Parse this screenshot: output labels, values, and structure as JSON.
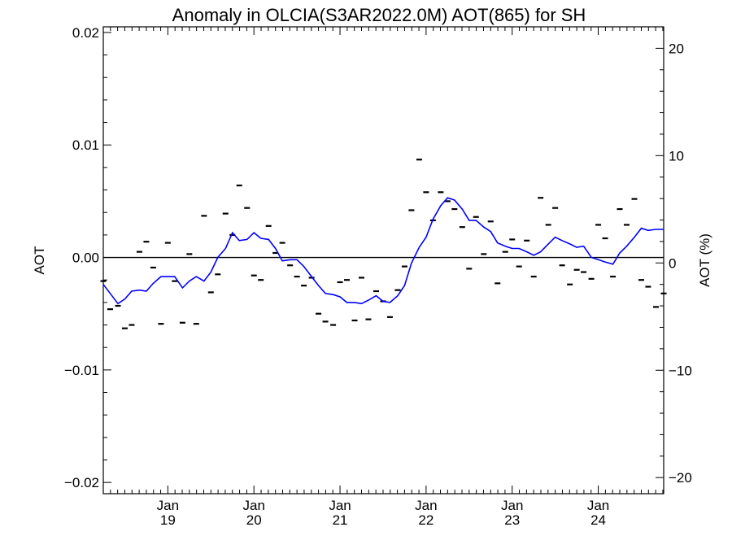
{
  "chart_data": {
    "type": "line",
    "title": "Anomaly in OLCIA(S3AR2022.0M) AOT(865) for SH",
    "ylabel": "AOT",
    "ylabel_right": "AOT (%)",
    "xlabel": "",
    "x_range": [
      2018.25,
      2024.76
    ],
    "ylim": [
      -0.021,
      0.0205
    ],
    "ylim_right": [
      -21.5,
      22.0
    ],
    "y_ticks": [
      -0.02,
      -0.01,
      0.0,
      0.01,
      0.02
    ],
    "y_tick_labels": [
      "−0.02",
      "−0.01",
      "0.00",
      "0.01",
      "0.02"
    ],
    "y_right_ticks": [
      -20,
      -10,
      0,
      10,
      20
    ],
    "y_right_tick_labels": [
      "−20",
      "−10",
      "0",
      "10",
      "20"
    ],
    "x_ticks": [
      {
        "x": 2019.0,
        "month": "Jan",
        "year": "19"
      },
      {
        "x": 2020.0,
        "month": "Jan",
        "year": "20"
      },
      {
        "x": 2021.0,
        "month": "Jan",
        "year": "21"
      },
      {
        "x": 2022.0,
        "month": "Jan",
        "year": "22"
      },
      {
        "x": 2023.0,
        "month": "Jan",
        "year": "23"
      },
      {
        "x": 2024.0,
        "month": "Jan",
        "year": "24"
      }
    ],
    "zero_line": 0,
    "grid": false,
    "series": [
      {
        "type": "line",
        "color": "#0000ff",
        "x": [
          2018.25,
          2018.33,
          2018.42,
          2018.5,
          2018.58,
          2018.67,
          2018.75,
          2018.83,
          2018.92,
          2019.0,
          2019.08,
          2019.17,
          2019.25,
          2019.33,
          2019.42,
          2019.5,
          2019.58,
          2019.67,
          2019.75,
          2019.83,
          2019.92,
          2020.0,
          2020.08,
          2020.17,
          2020.25,
          2020.33,
          2020.42,
          2020.5,
          2020.58,
          2020.67,
          2020.75,
          2020.83,
          2020.92,
          2021.0,
          2021.08,
          2021.17,
          2021.25,
          2021.33,
          2021.42,
          2021.5,
          2021.58,
          2021.67,
          2021.75,
          2021.83,
          2021.92,
          2022.0,
          2022.08,
          2022.17,
          2022.25,
          2022.33,
          2022.42,
          2022.5,
          2022.58,
          2022.67,
          2022.75,
          2022.83,
          2022.92,
          2023.0,
          2023.08,
          2023.17,
          2023.25,
          2023.33,
          2023.42,
          2023.5,
          2023.58,
          2023.67,
          2023.75,
          2023.83,
          2023.92,
          2024.0,
          2024.08,
          2024.17,
          2024.25,
          2024.33,
          2024.42,
          2024.5,
          2024.58,
          2024.67,
          2024.76
        ],
        "y": [
          -0.0024,
          -0.0032,
          -0.0041,
          -0.0037,
          -0.003,
          -0.0029,
          -0.003,
          -0.0023,
          -0.0017,
          -0.0017,
          -0.0017,
          -0.0027,
          -0.0021,
          -0.0017,
          -0.0021,
          -0.0013,
          0.0,
          0.0008,
          0.0022,
          0.0015,
          0.0016,
          0.0022,
          0.0017,
          0.0016,
          0.0008,
          -0.0003,
          -0.0002,
          -0.0002,
          -0.0008,
          -0.0017,
          -0.0025,
          -0.0032,
          -0.0033,
          -0.0035,
          -0.004,
          -0.004,
          -0.0041,
          -0.0038,
          -0.0034,
          -0.0039,
          -0.004,
          -0.0034,
          -0.0025,
          -0.0005,
          0.0009,
          0.0018,
          0.0034,
          0.0046,
          0.0053,
          0.0051,
          0.0043,
          0.0033,
          0.0033,
          0.0027,
          0.0023,
          0.0013,
          0.001,
          0.0008,
          0.0008,
          0.0005,
          0.0002,
          0.0005,
          0.0012,
          0.0018,
          0.0015,
          0.0012,
          0.0009,
          0.001,
          0.0,
          -0.0002,
          -0.0004,
          -0.0006,
          0.0004,
          0.001,
          0.0018,
          0.0026,
          0.0024,
          0.0025,
          0.0025
        ]
      },
      {
        "type": "markers",
        "marker": "dash",
        "color": "#000000",
        "x": [
          2018.25,
          2018.33,
          2018.42,
          2018.5,
          2018.58,
          2018.67,
          2018.75,
          2018.83,
          2018.92,
          2019.0,
          2019.08,
          2019.17,
          2019.25,
          2019.33,
          2019.42,
          2019.5,
          2019.58,
          2019.67,
          2019.75,
          2019.83,
          2019.92,
          2020.0,
          2020.08,
          2020.17,
          2020.25,
          2020.33,
          2020.42,
          2020.5,
          2020.58,
          2020.67,
          2020.75,
          2020.83,
          2020.92,
          2021.0,
          2021.08,
          2021.17,
          2021.25,
          2021.33,
          2021.42,
          2021.5,
          2021.58,
          2021.67,
          2021.75,
          2021.83,
          2021.92,
          2022.0,
          2022.08,
          2022.17,
          2022.25,
          2022.33,
          2022.42,
          2022.5,
          2022.58,
          2022.67,
          2022.75,
          2022.83,
          2022.92,
          2023.0,
          2023.08,
          2023.17,
          2023.25,
          2023.33,
          2023.42,
          2023.5,
          2023.58,
          2023.67,
          2023.75,
          2023.83,
          2023.92,
          2024.0,
          2024.08,
          2024.17,
          2024.25,
          2024.33,
          2024.42,
          2024.5,
          2024.58,
          2024.67,
          2024.76
        ],
        "y": [
          -0.0021,
          -0.0046,
          -0.0043,
          -0.0063,
          -0.006,
          0.0005,
          0.0014,
          -0.0009,
          -0.0059,
          0.0013,
          -0.0021,
          -0.0058,
          0.0003,
          -0.0059,
          0.0037,
          -0.0031,
          -0.0015,
          0.0039,
          0.002,
          0.0064,
          0.0044,
          -0.0016,
          -0.002,
          0.0028,
          0.0004,
          0.0013,
          -0.0007,
          -0.0017,
          -0.0025,
          -0.0018,
          -0.005,
          -0.0057,
          -0.006,
          -0.0022,
          -0.002,
          -0.0056,
          -0.0018,
          -0.0055,
          -0.003,
          -0.0039,
          -0.0053,
          -0.0029,
          -0.0008,
          0.0042,
          0.0087,
          0.0058,
          0.0033,
          0.0058,
          0.005,
          0.0043,
          0.0027,
          -0.001,
          0.0036,
          0.0003,
          0.0032,
          -0.0023,
          0.0005,
          0.0016,
          -0.0008,
          0.0015,
          -0.0017,
          0.0053,
          0.0029,
          0.0044,
          -0.0007,
          -0.0024,
          -0.0011,
          -0.0013,
          -0.0019,
          0.0029,
          0.0017,
          -0.0017,
          0.0043,
          0.0029,
          0.0052,
          -0.002,
          -0.0026,
          -0.0044,
          -0.0032
        ]
      }
    ]
  }
}
